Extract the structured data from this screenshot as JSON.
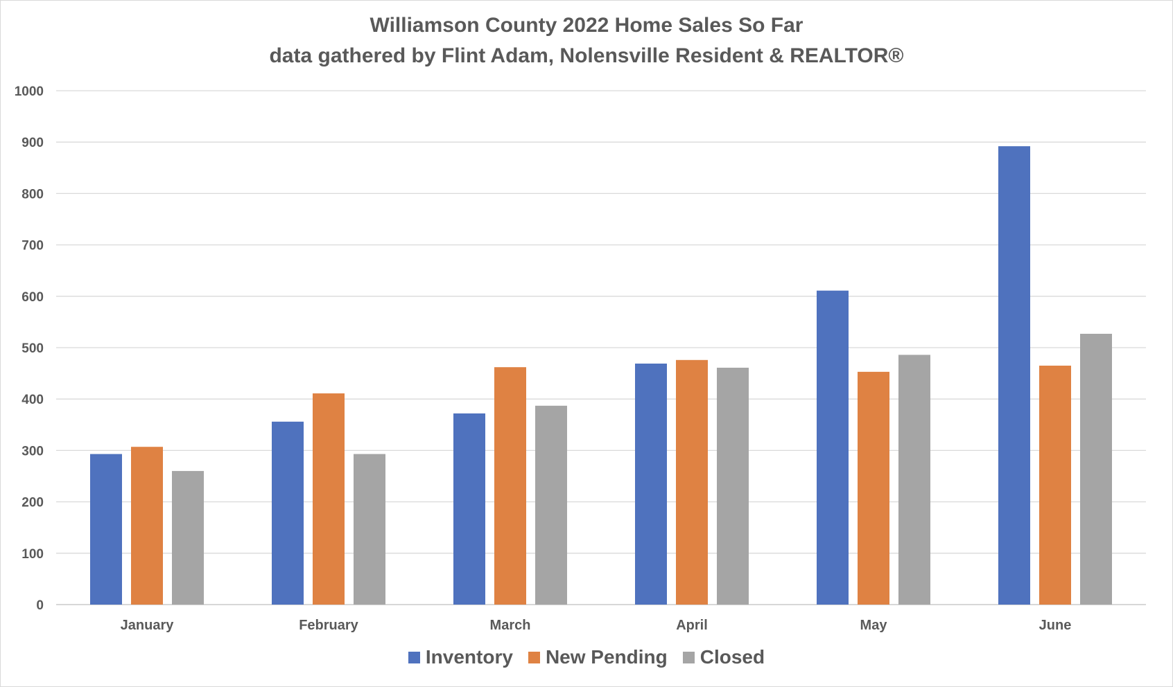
{
  "chart_data": {
    "type": "bar",
    "title": "Williamson County 2022 Home Sales So Far",
    "subtitle": "data gathered by Flint Adam, Nolensville Resident & REALTOR®",
    "categories": [
      "January",
      "February",
      "March",
      "April",
      "May",
      "June"
    ],
    "series": [
      {
        "name": "Inventory",
        "color": "#4F72BE",
        "values": [
          293,
          356,
          372,
          469,
          611,
          892
        ]
      },
      {
        "name": "New Pending",
        "color": "#DF8243",
        "values": [
          307,
          411,
          462,
          476,
          453,
          465
        ]
      },
      {
        "name": "Closed",
        "color": "#A5A5A5",
        "values": [
          260,
          293,
          387,
          461,
          486,
          527
        ]
      }
    ],
    "ylim": [
      0,
      1000
    ],
    "yticks": [
      0,
      100,
      200,
      300,
      400,
      500,
      600,
      700,
      800,
      900,
      1000
    ],
    "grid": true,
    "legend_position": "bottom"
  }
}
